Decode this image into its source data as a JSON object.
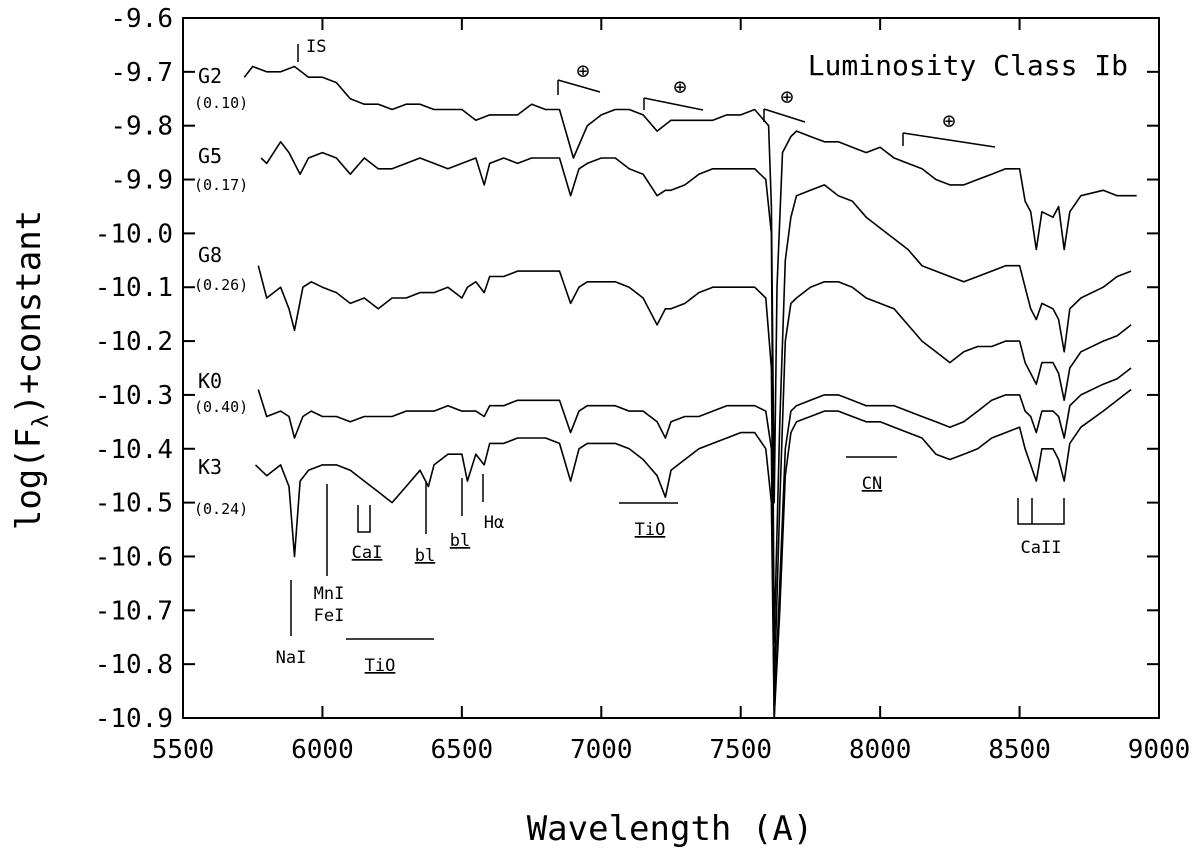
{
  "chart_data": {
    "type": "line",
    "title": "Luminosity Class Ib",
    "xlabel": "Wavelength (A)",
    "ylabel_main": "log(F",
    "ylabel_sub": "λ",
    "ylabel_tail": ")+constant",
    "xlim": [
      5500,
      9000
    ],
    "ylim": [
      -10.9,
      -9.6
    ],
    "xticks": [
      "5500",
      "6000",
      "6500",
      "7000",
      "7500",
      "8000",
      "8500",
      "9000"
    ],
    "yticks": [
      "-9.6",
      "-9.7",
      "-9.8",
      "-9.9",
      "-10.0",
      "-10.1",
      "-10.2",
      "-10.3",
      "-10.4",
      "-10.5",
      "-10.6",
      "-10.7",
      "-10.8",
      "-10.9"
    ],
    "grid": false,
    "series": [
      {
        "name": "G2",
        "sublabel": "(0.10)",
        "x": [
          5720,
          5750,
          5800,
          5850,
          5900,
          5950,
          6000,
          6050,
          6100,
          6150,
          6200,
          6250,
          6300,
          6350,
          6400,
          6450,
          6500,
          6550,
          6600,
          6650,
          6700,
          6750,
          6800,
          6850,
          6900,
          6950,
          7000,
          7050,
          7100,
          7150,
          7200,
          7250,
          7300,
          7350,
          7400,
          7450,
          7500,
          7550,
          7600,
          7610,
          7620,
          7630,
          7650,
          7680,
          7700,
          7750,
          7800,
          7850,
          7900,
          7950,
          8000,
          8050,
          8100,
          8150,
          8200,
          8250,
          8300,
          8350,
          8400,
          8450,
          8500,
          8520,
          8540,
          8560,
          8580,
          8620,
          8640,
          8660,
          8680,
          8720,
          8800,
          8850,
          8900,
          8920
        ],
        "y": [
          -9.71,
          -9.69,
          -9.7,
          -9.7,
          -9.69,
          -9.71,
          -9.71,
          -9.72,
          -9.75,
          -9.76,
          -9.76,
          -9.77,
          -9.76,
          -9.76,
          -9.77,
          -9.77,
          -9.77,
          -9.79,
          -9.78,
          -9.78,
          -9.78,
          -9.76,
          -9.77,
          -9.77,
          -9.86,
          -9.8,
          -9.78,
          -9.77,
          -9.77,
          -9.78,
          -9.81,
          -9.79,
          -9.79,
          -9.79,
          -9.79,
          -9.78,
          -9.78,
          -9.77,
          -9.8,
          -9.95,
          -10.5,
          -10.1,
          -9.85,
          -9.82,
          -9.81,
          -9.82,
          -9.83,
          -9.83,
          -9.84,
          -9.85,
          -9.84,
          -9.86,
          -9.87,
          -9.88,
          -9.9,
          -9.91,
          -9.91,
          -9.9,
          -9.89,
          -9.88,
          -9.88,
          -9.94,
          -9.96,
          -10.03,
          -9.96,
          -9.97,
          -9.95,
          -10.03,
          -9.96,
          -9.93,
          -9.92,
          -9.93,
          -9.93,
          -9.93
        ]
      },
      {
        "name": "G5",
        "sublabel": "(0.17)",
        "x": [
          5780,
          5800,
          5850,
          5880,
          5900,
          5920,
          5950,
          6000,
          6050,
          6100,
          6150,
          6200,
          6250,
          6300,
          6350,
          6400,
          6450,
          6500,
          6550,
          6580,
          6600,
          6650,
          6700,
          6750,
          6800,
          6850,
          6890,
          6920,
          6950,
          7000,
          7050,
          7100,
          7150,
          7200,
          7230,
          7250,
          7300,
          7350,
          7400,
          7450,
          7500,
          7550,
          7590,
          7610,
          7620,
          7640,
          7660,
          7680,
          7700,
          7750,
          7800,
          7850,
          7900,
          7950,
          8000,
          8050,
          8100,
          8150,
          8200,
          8250,
          8300,
          8350,
          8400,
          8450,
          8500,
          8520,
          8540,
          8560,
          8580,
          8620,
          8640,
          8660,
          8680,
          8720,
          8800,
          8850,
          8900
        ],
        "y": [
          -9.86,
          -9.87,
          -9.83,
          -9.85,
          -9.87,
          -9.89,
          -9.86,
          -9.85,
          -9.86,
          -9.89,
          -9.86,
          -9.88,
          -9.88,
          -9.87,
          -9.86,
          -9.87,
          -9.88,
          -9.87,
          -9.86,
          -9.91,
          -9.87,
          -9.86,
          -9.87,
          -9.86,
          -9.86,
          -9.86,
          -9.93,
          -9.88,
          -9.87,
          -9.86,
          -9.86,
          -9.88,
          -9.89,
          -9.93,
          -9.92,
          -9.92,
          -9.91,
          -9.89,
          -9.88,
          -9.88,
          -9.88,
          -9.88,
          -9.9,
          -10.0,
          -10.76,
          -10.35,
          -10.05,
          -9.97,
          -9.93,
          -9.92,
          -9.91,
          -9.93,
          -9.94,
          -9.97,
          -9.99,
          -10.01,
          -10.03,
          -10.06,
          -10.07,
          -10.08,
          -10.09,
          -10.08,
          -10.07,
          -10.06,
          -10.06,
          -10.1,
          -10.14,
          -10.16,
          -10.13,
          -10.14,
          -10.16,
          -10.22,
          -10.14,
          -10.12,
          -10.1,
          -10.08,
          -10.07
        ]
      },
      {
        "name": "G8",
        "sublabel": "(0.26)",
        "x": [
          5770,
          5800,
          5850,
          5880,
          5900,
          5930,
          5960,
          6000,
          6050,
          6100,
          6150,
          6200,
          6250,
          6300,
          6350,
          6400,
          6450,
          6500,
          6520,
          6550,
          6580,
          6600,
          6650,
          6700,
          6750,
          6800,
          6850,
          6890,
          6920,
          6950,
          7000,
          7050,
          7100,
          7150,
          7200,
          7230,
          7250,
          7300,
          7350,
          7400,
          7450,
          7500,
          7550,
          7590,
          7610,
          7620,
          7640,
          7660,
          7680,
          7700,
          7750,
          7800,
          7850,
          7900,
          7950,
          8000,
          8050,
          8100,
          8150,
          8200,
          8250,
          8300,
          8350,
          8400,
          8450,
          8500,
          8520,
          8540,
          8560,
          8580,
          8620,
          8640,
          8660,
          8680,
          8720,
          8800,
          8850,
          8900
        ],
        "y": [
          -10.06,
          -10.12,
          -10.1,
          -10.14,
          -10.18,
          -10.1,
          -10.09,
          -10.1,
          -10.11,
          -10.13,
          -10.12,
          -10.14,
          -10.12,
          -10.12,
          -10.11,
          -10.11,
          -10.1,
          -10.12,
          -10.1,
          -10.09,
          -10.11,
          -10.08,
          -10.08,
          -10.07,
          -10.07,
          -10.07,
          -10.07,
          -10.13,
          -10.1,
          -10.09,
          -10.09,
          -10.09,
          -10.1,
          -10.12,
          -10.17,
          -10.14,
          -10.14,
          -10.13,
          -10.11,
          -10.1,
          -10.1,
          -10.1,
          -10.1,
          -10.12,
          -10.25,
          -10.85,
          -10.5,
          -10.2,
          -10.13,
          -10.12,
          -10.1,
          -10.09,
          -10.09,
          -10.1,
          -10.12,
          -10.13,
          -10.14,
          -10.17,
          -10.2,
          -10.22,
          -10.24,
          -10.22,
          -10.21,
          -10.21,
          -10.2,
          -10.2,
          -10.24,
          -10.26,
          -10.28,
          -10.24,
          -10.24,
          -10.26,
          -10.31,
          -10.25,
          -10.22,
          -10.2,
          -10.19,
          -10.17
        ]
      },
      {
        "name": "K0",
        "sublabel": "(0.40)",
        "x": [
          5770,
          5800,
          5850,
          5880,
          5900,
          5930,
          5960,
          6000,
          6050,
          6100,
          6150,
          6200,
          6250,
          6300,
          6350,
          6400,
          6450,
          6500,
          6550,
          6580,
          6600,
          6650,
          6700,
          6750,
          6800,
          6850,
          6890,
          6920,
          6950,
          7000,
          7050,
          7100,
          7150,
          7200,
          7230,
          7250,
          7300,
          7350,
          7400,
          7450,
          7500,
          7550,
          7590,
          7610,
          7620,
          7640,
          7660,
          7680,
          7700,
          7750,
          7800,
          7850,
          7900,
          7950,
          8000,
          8050,
          8100,
          8150,
          8200,
          8250,
          8300,
          8350,
          8400,
          8450,
          8500,
          8520,
          8540,
          8560,
          8580,
          8620,
          8640,
          8660,
          8680,
          8720,
          8800,
          8850,
          8900
        ],
        "y": [
          -10.29,
          -10.34,
          -10.33,
          -10.34,
          -10.38,
          -10.34,
          -10.33,
          -10.34,
          -10.34,
          -10.35,
          -10.34,
          -10.34,
          -10.34,
          -10.33,
          -10.33,
          -10.33,
          -10.32,
          -10.33,
          -10.33,
          -10.34,
          -10.32,
          -10.32,
          -10.31,
          -10.31,
          -10.31,
          -10.31,
          -10.37,
          -10.33,
          -10.32,
          -10.32,
          -10.32,
          -10.33,
          -10.33,
          -10.35,
          -10.38,
          -10.35,
          -10.34,
          -10.34,
          -10.33,
          -10.32,
          -10.32,
          -10.32,
          -10.33,
          -10.4,
          -10.9,
          -10.65,
          -10.4,
          -10.33,
          -10.32,
          -10.31,
          -10.3,
          -10.3,
          -10.31,
          -10.32,
          -10.32,
          -10.32,
          -10.33,
          -10.34,
          -10.35,
          -10.36,
          -10.35,
          -10.33,
          -10.31,
          -10.3,
          -10.3,
          -10.33,
          -10.34,
          -10.37,
          -10.33,
          -10.33,
          -10.34,
          -10.38,
          -10.32,
          -10.3,
          -10.28,
          -10.27,
          -10.25
        ]
      },
      {
        "name": "K3",
        "sublabel": "(0.24)",
        "x": [
          5760,
          5800,
          5850,
          5880,
          5900,
          5920,
          5950,
          6000,
          6050,
          6100,
          6150,
          6200,
          6250,
          6300,
          6350,
          6380,
          6400,
          6450,
          6500,
          6520,
          6550,
          6580,
          6600,
          6650,
          6700,
          6750,
          6800,
          6850,
          6890,
          6920,
          6950,
          7000,
          7050,
          7100,
          7150,
          7200,
          7230,
          7250,
          7300,
          7350,
          7400,
          7450,
          7500,
          7550,
          7590,
          7610,
          7620,
          7640,
          7660,
          7680,
          7700,
          7750,
          7800,
          7850,
          7900,
          7950,
          8000,
          8050,
          8100,
          8150,
          8200,
          8250,
          8300,
          8350,
          8400,
          8450,
          8500,
          8520,
          8540,
          8560,
          8580,
          8620,
          8640,
          8660,
          8680,
          8720,
          8800,
          8850,
          8900
        ],
        "y": [
          -10.43,
          -10.45,
          -10.43,
          -10.47,
          -10.6,
          -10.46,
          -10.44,
          -10.43,
          -10.43,
          -10.44,
          -10.46,
          -10.48,
          -10.5,
          -10.47,
          -10.44,
          -10.47,
          -10.43,
          -10.41,
          -10.41,
          -10.46,
          -10.41,
          -10.43,
          -10.39,
          -10.39,
          -10.38,
          -10.38,
          -10.38,
          -10.39,
          -10.46,
          -10.4,
          -10.39,
          -10.39,
          -10.39,
          -10.4,
          -10.42,
          -10.45,
          -10.49,
          -10.44,
          -10.42,
          -10.4,
          -10.39,
          -10.38,
          -10.37,
          -10.37,
          -10.4,
          -10.5,
          -10.9,
          -10.7,
          -10.45,
          -10.37,
          -10.35,
          -10.34,
          -10.33,
          -10.33,
          -10.34,
          -10.35,
          -10.35,
          -10.36,
          -10.37,
          -10.38,
          -10.41,
          -10.42,
          -10.41,
          -10.4,
          -10.38,
          -10.37,
          -10.36,
          -10.4,
          -10.43,
          -10.46,
          -10.4,
          -10.4,
          -10.42,
          -10.46,
          -10.39,
          -10.36,
          -10.33,
          -10.31,
          -10.29
        ]
      }
    ]
  },
  "annotations": {
    "is": "IS",
    "earth": "⊕",
    "nai": "NaI",
    "mni": "MnI",
    "fei": "FeI",
    "cai": "CaI",
    "bl1": "bl",
    "bl2": "bl",
    "halpha": "Hα",
    "tio_blue": "TiO",
    "tio_mid": "TiO",
    "cn": "CN",
    "caii": "CaII"
  }
}
